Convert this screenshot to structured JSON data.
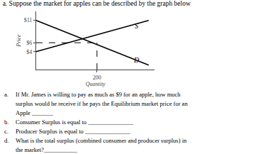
{
  "chart_data": {
    "type": "line",
    "title": "a. Suppose the market for apples can be described by the graph below",
    "xlabel": "Quantity",
    "ylabel": "Price",
    "series": [
      {
        "x": [
          0,
          370
        ],
        "values": [
          4,
          11
        ],
        "color": "black",
        "line_style": "solid"
      },
      {
        "x": [
          0,
          370
        ],
        "values": [
          11,
          1
        ],
        "color": "black",
        "line_style": "solid"
      },
      {
        "x": [
          200,
          200
        ],
        "values": [
          0,
          6
        ],
        "color": "black",
        "line_style": "dashed"
      },
      {
        "x": [
          0,
          200
        ],
        "values": [
          6,
          6
        ],
        "color": "black",
        "line_style": "dashed"
      }
    ],
    "annotations": [
      {
        "text": "S",
        "x": 330,
        "y": 9.8
      },
      {
        "text": "D",
        "x": 330,
        "y": 2.2
      }
    ],
    "xlim": [
      0,
      390
    ],
    "ylim": [
      0,
      13
    ],
    "xticks": [
      200
    ],
    "yticks": [
      {
        "value": 11,
        "label": "$11"
      },
      {
        "value": 6,
        "label": "$6"
      },
      {
        "value": 4,
        "label": "$4"
      }
    ],
    "grid": false,
    "questions": [
      {
        "label": "a.",
        "text": "If Mr. James is willing to pay as much as $9 for an apple, how much"
      },
      {
        "text": "surplus would he receive if he pays the Equilibrium market price for an"
      },
      {
        "text": "Apple _______"
      },
      {
        "label": "b.",
        "text": "Consumer Surplus is equal to _______________"
      },
      {
        "label": "c.",
        "text": "Producer Surplus is equal to _______________"
      },
      {
        "label": "d.",
        "text": "What is the total surplus (combined consumer and producer surplus) in"
      },
      {
        "text": "the market?___________"
      }
    ]
  }
}
